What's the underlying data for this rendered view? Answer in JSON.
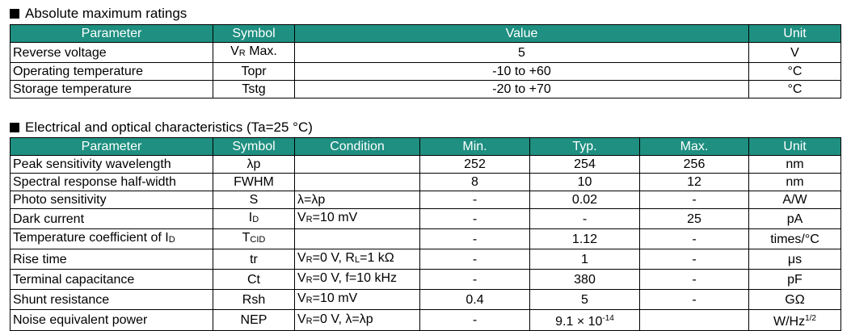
{
  "abs": {
    "title": "Absolute maximum ratings",
    "headers": {
      "parameter": "Parameter",
      "symbol": "Symbol",
      "value": "Value",
      "unit": "Unit"
    },
    "rows": [
      {
        "parameter": "Reverse voltage",
        "symbol_main": "V",
        "symbol_sub": "R",
        "symbol_suffix": " Max.",
        "value": "5",
        "unit": "V"
      },
      {
        "parameter": "Operating temperature",
        "symbol_main": "Topr",
        "symbol_sub": "",
        "symbol_suffix": "",
        "value": "-10 to +60",
        "unit": "°C"
      },
      {
        "parameter": "Storage temperature",
        "symbol_main": "Tstg",
        "symbol_sub": "",
        "symbol_suffix": "",
        "value": "-20 to +70",
        "unit": "°C"
      }
    ]
  },
  "elec": {
    "title": "Electrical and optical characteristics (Ta=25 °C)",
    "headers": {
      "parameter": "Parameter",
      "symbol": "Symbol",
      "condition": "Condition",
      "min": "Min.",
      "typ": "Typ.",
      "max": "Max.",
      "unit": "Unit"
    },
    "rows": [
      {
        "parameter": "Peak sensitivity wavelength",
        "symbol": "λp",
        "condition": "",
        "min": "252",
        "typ": "254",
        "max": "256",
        "unit": "nm"
      },
      {
        "parameter": "Spectral response half-width",
        "symbol": "FWHM",
        "condition": "",
        "min": "8",
        "typ": "10",
        "max": "12",
        "unit": "nm"
      },
      {
        "parameter": "Photo sensitivity",
        "symbol": "S",
        "condition": "λ=λp",
        "min": "-",
        "typ": "0.02",
        "max": "-",
        "unit": "A/W"
      },
      {
        "parameter": "Dark current",
        "symbol_main": "I",
        "symbol_sub": "D",
        "cond_main": "V",
        "cond_sub": "R",
        "cond_rest": "=10 mV",
        "min": "-",
        "typ": "-",
        "max": "25",
        "unit": "pA"
      },
      {
        "parameter_main": "Temperature coefficient of I",
        "parameter_sub": "D",
        "symbol_main": "T",
        "symbol_sub": "CID",
        "condition": "",
        "min": "-",
        "typ": "1.12",
        "max": "-",
        "unit": "times/°C"
      },
      {
        "parameter": "Rise time",
        "symbol": "tr",
        "cond_a_main": "V",
        "cond_a_sub": "R",
        "cond_a_rest": "=0 V, R",
        "cond_b_sub": "L",
        "cond_b_rest": "=1 kΩ",
        "min": "-",
        "typ": "1",
        "max": "-",
        "unit": "μs"
      },
      {
        "parameter": "Terminal capacitance",
        "symbol": "Ct",
        "cond_main": "V",
        "cond_sub": "R",
        "cond_rest": "=0 V, f=10 kHz",
        "min": "-",
        "typ": "380",
        "max": "-",
        "unit": "pF"
      },
      {
        "parameter": "Shunt resistance",
        "symbol": "Rsh",
        "cond_main": "V",
        "cond_sub": "R",
        "cond_rest": "=10 mV",
        "min": "0.4",
        "typ": "5",
        "max": "-",
        "unit": "GΩ"
      },
      {
        "parameter": "Noise equivalent power",
        "symbol": "NEP",
        "cond_main": "V",
        "cond_sub": "R",
        "cond_rest": "=0 V, λ=λp",
        "min": "-",
        "typ_main": "9.1 × 10",
        "typ_sup": "-14",
        "max": "",
        "unit_main": "W/Hz",
        "unit_sup": "1/2"
      }
    ]
  }
}
